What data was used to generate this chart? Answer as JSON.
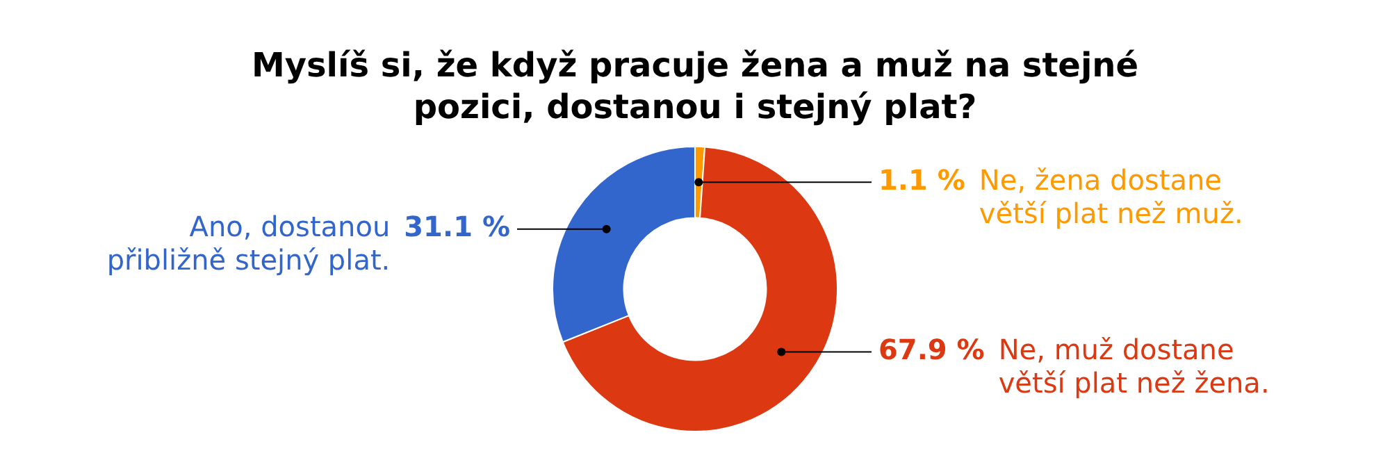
{
  "chart_data": {
    "type": "donut",
    "title": "Myslíš si, že když pracuje žena a muž na stejné pozici, dostanou i stejný plat?",
    "categories": [
      "Ne, žena dostane větší plat než muž.",
      "Ne, muž dostane větší plat než žena.",
      "Ano, dostanou přibližně stejný plat."
    ],
    "values": [
      1.1,
      67.9,
      31.1
    ],
    "colors": [
      "#ff9900",
      "#dc3912",
      "#3366cc"
    ],
    "value_labels": [
      "1.1 %",
      "67.9 %",
      "31.1 %"
    ],
    "legend": false
  }
}
